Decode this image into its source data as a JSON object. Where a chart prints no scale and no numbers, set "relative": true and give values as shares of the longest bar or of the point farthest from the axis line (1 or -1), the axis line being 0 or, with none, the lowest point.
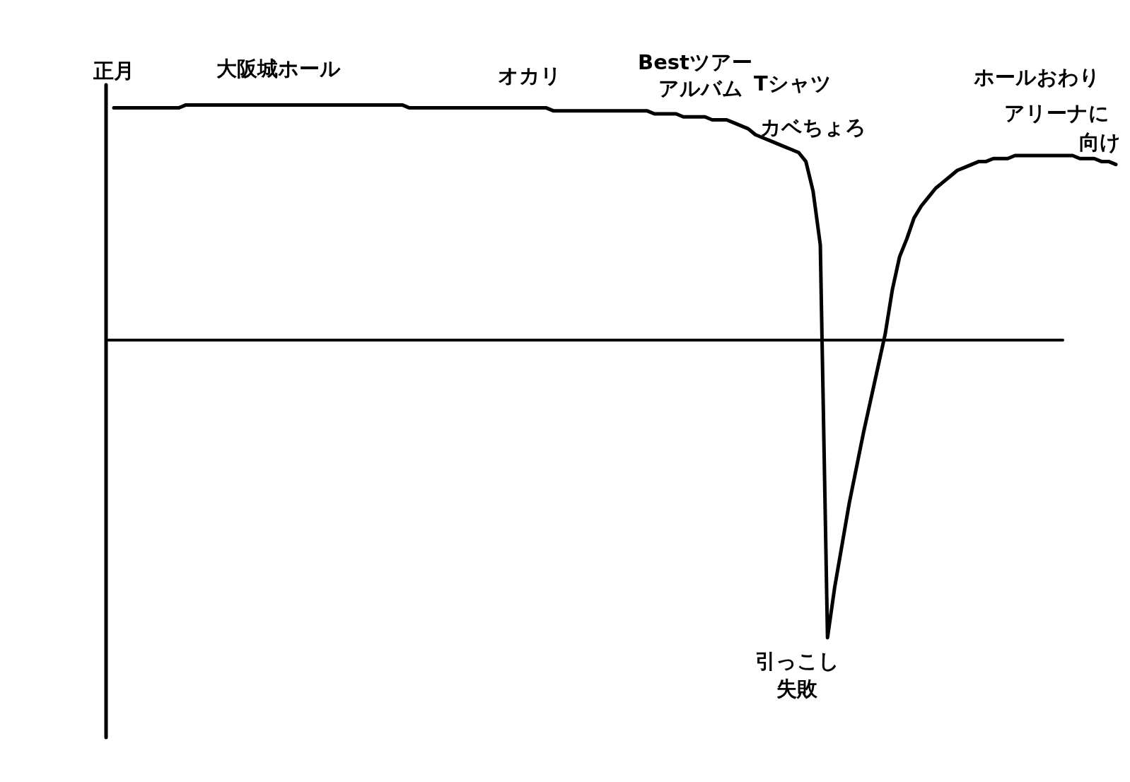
{
  "chart_data": {
    "type": "line",
    "relative": true,
    "line_style": "solid",
    "categories": [
      null,
      null,
      null,
      null,
      null,
      null,
      null,
      null,
      null,
      null,
      null,
      null,
      null,
      null,
      null,
      null,
      null,
      null,
      null,
      null,
      null,
      null,
      null,
      null,
      null,
      null,
      null,
      null,
      null,
      null,
      null,
      null,
      null,
      null,
      null,
      null,
      null,
      null,
      null,
      null,
      null,
      null,
      null,
      null,
      null,
      null,
      null,
      null,
      null,
      null,
      null,
      null,
      null,
      null,
      null,
      null,
      null,
      null,
      null,
      null,
      null,
      null,
      null,
      null,
      null,
      null,
      null,
      null,
      null,
      null,
      null,
      null,
      null,
      null,
      null,
      null,
      null,
      null,
      null,
      null,
      null,
      null,
      null,
      null,
      null,
      null,
      null,
      null,
      null,
      null,
      null,
      null,
      null,
      null,
      null,
      null,
      null,
      null,
      null,
      null,
      null,
      null,
      null,
      null,
      null,
      null,
      null,
      null,
      null,
      null,
      null,
      null,
      null,
      null,
      null,
      null,
      null,
      null,
      null,
      null,
      null,
      null,
      null,
      null,
      null,
      null,
      null,
      null,
      null,
      null,
      null,
      null,
      null,
      null,
      null,
      null,
      null,
      null,
      null,
      null
    ],
    "series": [
      {
        "color": "#000000",
        "values": [
          0.78,
          0.78,
          0.78,
          0.78,
          0.78,
          0.78,
          0.78,
          0.78,
          0.78,
          0.78,
          0.79,
          0.79,
          0.79,
          0.79,
          0.79,
          0.79,
          0.79,
          0.79,
          0.79,
          0.79,
          0.79,
          0.79,
          0.79,
          0.79,
          0.79,
          0.79,
          0.79,
          0.79,
          0.79,
          0.79,
          0.79,
          0.79,
          0.79,
          0.79,
          0.79,
          0.79,
          0.79,
          0.79,
          0.79,
          0.79,
          0.79,
          0.78,
          0.78,
          0.78,
          0.78,
          0.78,
          0.78,
          0.78,
          0.78,
          0.78,
          0.78,
          0.78,
          0.78,
          0.78,
          0.78,
          0.78,
          0.78,
          0.78,
          0.78,
          0.78,
          0.78,
          0.77,
          0.77,
          0.77,
          0.77,
          0.77,
          0.77,
          0.77,
          0.77,
          0.77,
          0.77,
          0.77,
          0.77,
          0.77,
          0.77,
          0.76,
          0.76,
          0.76,
          0.76,
          0.75,
          0.75,
          0.75,
          0.75,
          0.74,
          0.74,
          0.74,
          0.73,
          0.72,
          0.71,
          0.69,
          0.68,
          0.67,
          0.66,
          0.65,
          0.64,
          0.63,
          0.6,
          0.5,
          0.32,
          -1,
          -0.83,
          -0.69,
          -0.55,
          -0.43,
          -0.31,
          -0.2,
          -0.09,
          0.02,
          0.17,
          0.28,
          0.34,
          0.41,
          0.45,
          0.48,
          0.51,
          0.53,
          0.55,
          0.57,
          0.58,
          0.59,
          0.6,
          0.6,
          0.61,
          0.61,
          0.61,
          0.62,
          0.62,
          0.62,
          0.62,
          0.62,
          0.62,
          0.62,
          0.62,
          0.62,
          0.61,
          0.61,
          0.61,
          0.6,
          0.6,
          0.59
        ]
      }
    ],
    "annotations": [
      "正月",
      "大阪城ホール",
      "オカリ",
      "Bestツアーアルバム",
      "Tシャツ",
      "カベちょろ",
      "引っこし失敗",
      "ホールおわりアリーナに向け"
    ]
  }
}
